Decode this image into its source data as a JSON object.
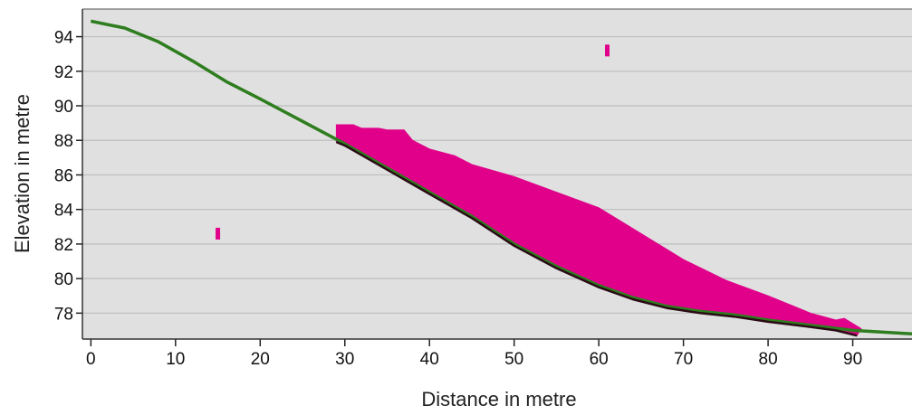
{
  "chart_data": {
    "type": "area",
    "title": "",
    "xlabel": "Distance in metre",
    "ylabel": "Elevation in metre",
    "xlim": [
      -1,
      97
    ],
    "ylim": [
      76.5,
      95.6
    ],
    "x_ticks": [
      0,
      10,
      20,
      30,
      40,
      50,
      60,
      70,
      80,
      90
    ],
    "y_ticks": [
      78,
      80,
      82,
      84,
      86,
      88,
      90,
      92,
      94
    ],
    "grid": {
      "horizontal": true,
      "vertical": false
    },
    "legend": "none",
    "colors": {
      "plot_background": "#e0e0e0",
      "ground_line": "#2e7d1e",
      "deposit_fill": "#e0008a",
      "deposit_base": "#2a0a14",
      "gridline": "#bdbdbd"
    },
    "series": [
      {
        "role": "ground-profile",
        "points": [
          [
            0,
            94.9
          ],
          [
            4,
            94.5
          ],
          [
            8,
            93.7
          ],
          [
            12,
            92.6
          ],
          [
            16,
            91.4
          ],
          [
            20,
            90.4
          ],
          [
            25,
            89.1
          ],
          [
            30,
            87.8
          ],
          [
            35,
            86.4
          ],
          [
            40,
            85.0
          ],
          [
            45,
            83.6
          ],
          [
            50,
            82.0
          ],
          [
            55,
            80.7
          ],
          [
            60,
            79.6
          ],
          [
            64,
            78.9
          ],
          [
            68,
            78.4
          ],
          [
            72,
            78.1
          ],
          [
            76,
            77.9
          ],
          [
            80,
            77.6
          ],
          [
            85,
            77.3
          ],
          [
            90,
            77.0
          ],
          [
            97,
            76.8
          ]
        ]
      },
      {
        "role": "deposit-top",
        "points": [
          [
            29,
            88.9
          ],
          [
            31,
            88.9
          ],
          [
            32,
            88.7
          ],
          [
            34,
            88.7
          ],
          [
            35,
            88.6
          ],
          [
            37,
            88.6
          ],
          [
            38,
            88.0
          ],
          [
            40,
            87.5
          ],
          [
            43,
            87.1
          ],
          [
            45,
            86.6
          ],
          [
            50,
            85.9
          ],
          [
            55,
            85.0
          ],
          [
            60,
            84.1
          ],
          [
            65,
            82.6
          ],
          [
            70,
            81.1
          ],
          [
            75,
            79.9
          ],
          [
            80,
            79.0
          ],
          [
            85,
            78.0
          ],
          [
            88,
            77.6
          ],
          [
            89,
            77.7
          ],
          [
            91,
            77.1
          ]
        ]
      },
      {
        "role": "deposit-bottom",
        "points": [
          [
            29,
            87.9
          ],
          [
            30,
            87.7
          ],
          [
            35,
            86.3
          ],
          [
            40,
            84.9
          ],
          [
            45,
            83.5
          ],
          [
            50,
            81.9
          ],
          [
            55,
            80.6
          ],
          [
            60,
            79.5
          ],
          [
            64,
            78.8
          ],
          [
            68,
            78.3
          ],
          [
            72,
            78.0
          ],
          [
            76,
            77.8
          ],
          [
            80,
            77.5
          ],
          [
            85,
            77.2
          ],
          [
            88,
            77.0
          ],
          [
            90.5,
            76.7
          ]
        ]
      },
      {
        "role": "markers",
        "points": [
          [
            15,
            82.6
          ],
          [
            61,
            93.2
          ]
        ]
      }
    ]
  }
}
